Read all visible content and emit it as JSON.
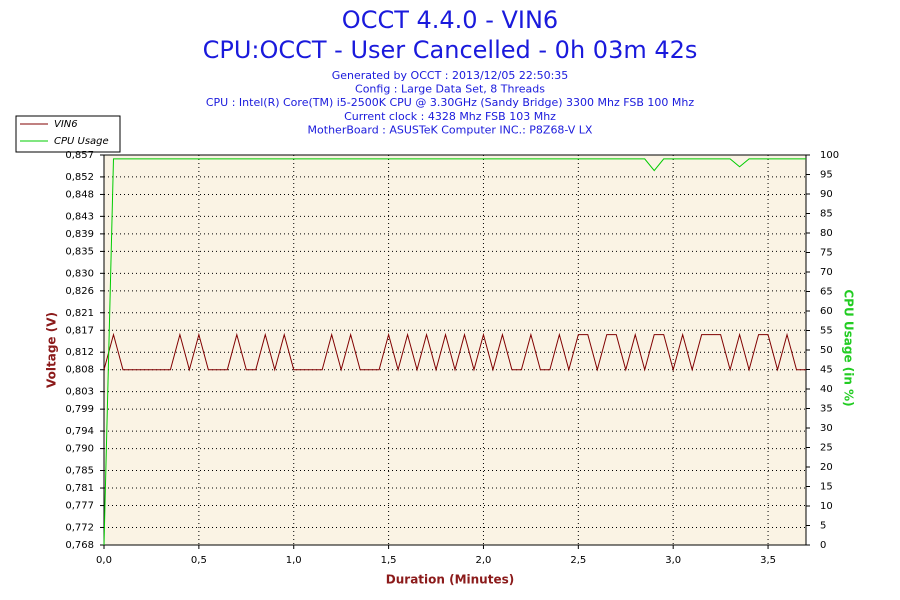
{
  "chart_data": {
    "type": "line",
    "title": "OCCT 4.4.0 - VIN6",
    "subtitle": "CPU:OCCT - User Cancelled - 0h 03m 42s",
    "info": [
      "Generated by OCCT : 2013/12/05 22:50:35",
      "Config : Large Data Set, 8 Threads",
      "CPU : Intel(R) Core(TM) i5-2500K CPU @ 3.30GHz (Sandy Bridge) 3300 Mhz FSB 100 Mhz",
      "Current clock : 4328 Mhz FSB 103 Mhz",
      "MotherBoard : ASUSTeK Computer INC.: P8Z68-V LX"
    ],
    "xlabel": "Duration (Minutes)",
    "ylabel": "Voltage (V)",
    "y2label": "CPU Usage (in %)",
    "xlim": [
      0,
      3.7
    ],
    "xticks": [
      {
        "value": 0,
        "label": "0,0"
      },
      {
        "value": 0.5,
        "label": "0,5"
      },
      {
        "value": 1,
        "label": "1,0"
      },
      {
        "value": 1.5,
        "label": "1,5"
      },
      {
        "value": 2,
        "label": "2,0"
      },
      {
        "value": 2.5,
        "label": "2,5"
      },
      {
        "value": 3,
        "label": "3,0"
      },
      {
        "value": 3.5,
        "label": "3,5"
      }
    ],
    "ylim": [
      0.768,
      0.857
    ],
    "yticks": [
      {
        "value": 0.768,
        "label": "0,768"
      },
      {
        "value": 0.772,
        "label": "0,772"
      },
      {
        "value": 0.777,
        "label": "0,777"
      },
      {
        "value": 0.781,
        "label": "0,781"
      },
      {
        "value": 0.785,
        "label": "0,785"
      },
      {
        "value": 0.79,
        "label": "0,790"
      },
      {
        "value": 0.794,
        "label": "0,794"
      },
      {
        "value": 0.799,
        "label": "0,799"
      },
      {
        "value": 0.803,
        "label": "0,803"
      },
      {
        "value": 0.808,
        "label": "0,808"
      },
      {
        "value": 0.812,
        "label": "0,812"
      },
      {
        "value": 0.817,
        "label": "0,817"
      },
      {
        "value": 0.821,
        "label": "0,821"
      },
      {
        "value": 0.826,
        "label": "0,826"
      },
      {
        "value": 0.83,
        "label": "0,830"
      },
      {
        "value": 0.835,
        "label": "0,835"
      },
      {
        "value": 0.839,
        "label": "0,839"
      },
      {
        "value": 0.843,
        "label": "0,843"
      },
      {
        "value": 0.848,
        "label": "0,848"
      },
      {
        "value": 0.852,
        "label": "0,852"
      },
      {
        "value": 0.857,
        "label": "0,857"
      }
    ],
    "y2lim": [
      0,
      100
    ],
    "y2ticks": [
      0,
      5,
      10,
      15,
      20,
      25,
      30,
      35,
      40,
      45,
      50,
      55,
      60,
      65,
      70,
      75,
      80,
      85,
      90,
      95,
      100
    ],
    "grid": true,
    "x": [
      0,
      0.05,
      0.1,
      0.15,
      0.2,
      0.25,
      0.3,
      0.35,
      0.4,
      0.45,
      0.5,
      0.55,
      0.6,
      0.65,
      0.7,
      0.75,
      0.8,
      0.85,
      0.9,
      0.95,
      1,
      1.05,
      1.1,
      1.15,
      1.2,
      1.25,
      1.3,
      1.35,
      1.4,
      1.45,
      1.5,
      1.55,
      1.6,
      1.65,
      1.7,
      1.75,
      1.8,
      1.85,
      1.9,
      1.95,
      2,
      2.05,
      2.1,
      2.15,
      2.2,
      2.25,
      2.3,
      2.35,
      2.4,
      2.45,
      2.5,
      2.55,
      2.6,
      2.65,
      2.7,
      2.75,
      2.8,
      2.85,
      2.9,
      2.95,
      3,
      3.05,
      3.1,
      3.15,
      3.2,
      3.25,
      3.3,
      3.35,
      3.4,
      3.45,
      3.5,
      3.55,
      3.6,
      3.65,
      3.7
    ],
    "series": [
      {
        "name": "VIN6",
        "color": "#800000",
        "axis": "y",
        "values": [
          0.808,
          0.816,
          0.808,
          0.808,
          0.808,
          0.808,
          0.808,
          0.808,
          0.816,
          0.808,
          0.816,
          0.808,
          0.808,
          0.808,
          0.816,
          0.808,
          0.808,
          0.816,
          0.808,
          0.816,
          0.808,
          0.808,
          0.808,
          0.808,
          0.816,
          0.808,
          0.816,
          0.808,
          0.808,
          0.808,
          0.816,
          0.808,
          0.816,
          0.808,
          0.816,
          0.808,
          0.816,
          0.808,
          0.816,
          0.808,
          0.816,
          0.808,
          0.816,
          0.808,
          0.808,
          0.816,
          0.808,
          0.808,
          0.816,
          0.808,
          0.816,
          0.816,
          0.808,
          0.816,
          0.816,
          0.808,
          0.816,
          0.808,
          0.816,
          0.816,
          0.808,
          0.816,
          0.808,
          0.816,
          0.816,
          0.816,
          0.808,
          0.816,
          0.808,
          0.816,
          0.816,
          0.808,
          0.816,
          0.808,
          0.808
        ]
      },
      {
        "name": "CPU Usage",
        "color": "#00cc00",
        "axis": "y2",
        "values": [
          0,
          99,
          99,
          99,
          99,
          99,
          99,
          99,
          99,
          99,
          99,
          99,
          99,
          99,
          99,
          99,
          99,
          99,
          99,
          99,
          99,
          99,
          99,
          99,
          99,
          99,
          99,
          99,
          99,
          99,
          99,
          99,
          99,
          99,
          99,
          99,
          99,
          99,
          99,
          99,
          99,
          99,
          99,
          99,
          99,
          99,
          99,
          99,
          99,
          99,
          99,
          99,
          99,
          99,
          99,
          99,
          99,
          99,
          96,
          99,
          99,
          99,
          99,
          99,
          99,
          99,
          99,
          97,
          99,
          99,
          99,
          99,
          99,
          99,
          99
        ]
      }
    ]
  }
}
